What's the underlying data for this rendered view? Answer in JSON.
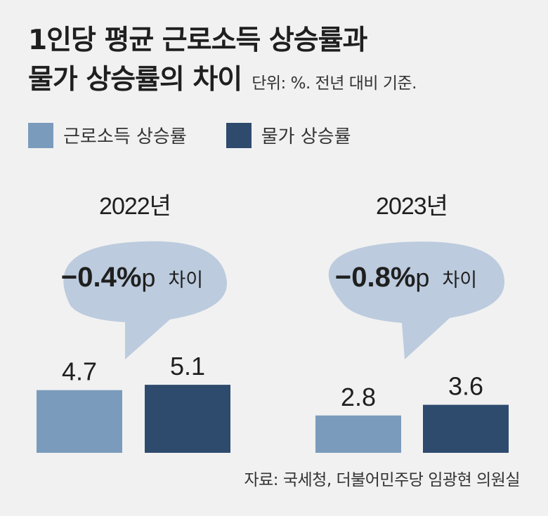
{
  "title": {
    "line1": "1인당 평균 근로소득 상승률과",
    "line2": "물가 상승률의 차이",
    "unit": "단위: %. 전년 대비 기준."
  },
  "legend": {
    "income": {
      "label": "근로소득 상승률",
      "color": "#7b9bbd"
    },
    "price": {
      "label": "물가 상승률",
      "color": "#2e4b6e"
    }
  },
  "source": "자료: 국세청, 더불어민주당 임광현 의원실",
  "bubble_color": "#bccbde",
  "chart_data": {
    "type": "bar",
    "categories": [
      "2022년",
      "2023년"
    ],
    "series": [
      {
        "name": "근로소득 상승률",
        "values": [
          4.7,
          2.8
        ]
      },
      {
        "name": "물가 상승률",
        "values": [
          5.1,
          3.6
        ]
      }
    ],
    "labels": [
      "4.7",
      "5.1",
      "2.8",
      "3.6"
    ],
    "annotations": [
      {
        "minus": "−",
        "number": "0.4%",
        "unit": "p",
        "suffix": "차이"
      },
      {
        "minus": "−",
        "number": "0.8%",
        "unit": "p",
        "suffix": "차이"
      }
    ]
  }
}
